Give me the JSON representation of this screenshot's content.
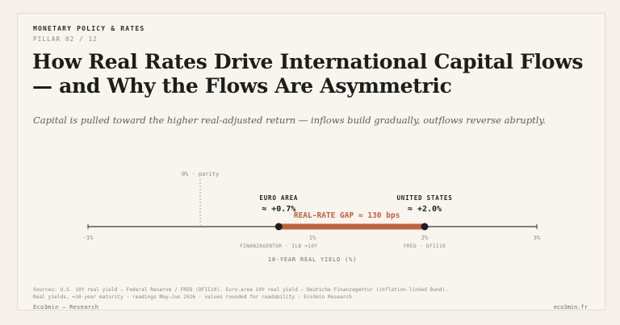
{
  "kicker": "MONETARY POLICY & RATES",
  "pillar": "PILLAR 02 / 12",
  "title_line1": "How Real Rates Drive International Capital Flows",
  "title_line2": "— and Why the Flows Are Asymmetric",
  "subtitle": "Capital is pulled toward the higher real-adjusted return — inflows build gradually, outflows reverse abruptly.",
  "axis": {
    "min": -1,
    "max": 3,
    "ticks": [
      {
        "value": -1,
        "label": "-1%"
      },
      {
        "value": 1,
        "label": "1%"
      },
      {
        "value": 2,
        "label": "2%"
      },
      {
        "value": 3,
        "label": "3%"
      }
    ],
    "label": "10-YEAR REAL YIELD (%)",
    "parity_value": 0,
    "parity_label": "0% · parity"
  },
  "points": [
    {
      "name": "EURO AREA",
      "value": 0.7,
      "value_label": "≈ +0.7%",
      "source": "FINANZAGENTUR · ILB ≈10Y"
    },
    {
      "name": "UNITED STATES",
      "value": 2.0,
      "value_label": "≈ +2.0%",
      "source": "FRED · DFII10"
    }
  ],
  "gap_label": "REAL-RATE GAP ≈ 130 bps",
  "colors": {
    "gap": "#c0613f",
    "axis": "#3a3634",
    "point": "#1f1d1b"
  },
  "sources_line1": "Sources: U.S. 10Y real yield — Federal Reserve / FRED (DFII10). Euro-area 10Y real yield — Deutsche Finanzagentur (inflation-linked Bund).",
  "sources_line2": "Real yields, ≈10-year maturity · readings May–Jun 2026 · values rounded for readability · Eco3min Research",
  "brand": "Eco3min — Research",
  "site": "eco3min.fr"
}
